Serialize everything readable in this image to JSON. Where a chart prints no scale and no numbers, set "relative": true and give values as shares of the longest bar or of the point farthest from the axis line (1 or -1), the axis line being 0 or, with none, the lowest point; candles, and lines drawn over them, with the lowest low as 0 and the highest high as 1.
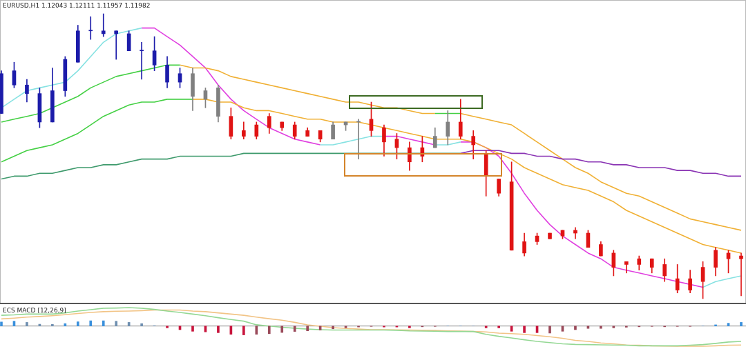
{
  "chart_data": [
    {
      "type": "candlestick",
      "title": "EURUSD,H1 1.12043 1.12111 1.11957 1.11982",
      "relative": true,
      "tick_labels": false,
      "categories": [
        null,
        null,
        null,
        null,
        null,
        null,
        null,
        null,
        null,
        null,
        null,
        null,
        null,
        null,
        null,
        null,
        null,
        null,
        null,
        null,
        null,
        null,
        null,
        null,
        null,
        null,
        null,
        null,
        null,
        null,
        null,
        null,
        null,
        null,
        null,
        null,
        null,
        null,
        null,
        null,
        null,
        null,
        null,
        null,
        null,
        null,
        null,
        null,
        null,
        null,
        null,
        null,
        null,
        null,
        null,
        null,
        null,
        null,
        null
      ],
      "ohlc": [
        [
          0.65,
          0.8,
          0.65,
          0.79
        ],
        [
          0.75,
          0.83,
          0.74,
          0.8
        ],
        [
          0.72,
          0.77,
          0.69,
          0.75
        ],
        [
          0.62,
          0.74,
          0.6,
          0.72
        ],
        [
          0.62,
          0.81,
          0.62,
          0.73
        ],
        [
          0.73,
          0.85,
          0.71,
          0.84
        ],
        [
          0.83,
          0.96,
          0.83,
          0.94
        ],
        [
          0.94,
          0.99,
          0.91,
          0.94
        ],
        [
          0.93,
          1,
          0.92,
          0.94
        ],
        [
          0.93,
          0.94,
          0.84,
          0.94
        ],
        [
          0.87,
          0.94,
          0.87,
          0.93
        ],
        [
          0.87,
          0.9,
          0.77,
          0.87
        ],
        [
          0.82,
          0.92,
          0.8,
          0.87
        ],
        [
          0.76,
          0.85,
          0.74,
          0.82
        ],
        [
          0.76,
          0.81,
          0.74,
          0.79
        ],
        [
          0.71,
          0.81,
          0.66,
          0.79
        ],
        [
          0.7,
          0.74,
          0.67,
          0.73
        ],
        [
          0.64,
          0.75,
          0.62,
          0.74
        ],
        [
          0.64,
          0.67,
          0.56,
          0.57
        ],
        [
          0.59,
          0.62,
          0.56,
          0.57
        ],
        [
          0.61,
          0.62,
          0.56,
          0.57
        ],
        [
          0.64,
          0.65,
          0.58,
          0.6
        ],
        [
          0.62,
          0.62,
          0.59,
          0.6
        ],
        [
          0.61,
          0.62,
          0.56,
          0.57
        ],
        [
          0.59,
          0.6,
          0.57,
          0.57
        ],
        [
          0.59,
          0.59,
          0.55,
          0.56
        ],
        [
          0.56,
          0.62,
          0.56,
          0.61
        ],
        [
          0.61,
          0.62,
          0.59,
          0.62
        ],
        [
          0.62,
          0.63,
          0.49,
          0.62
        ],
        [
          0.63,
          0.69,
          0.57,
          0.59
        ],
        [
          0.6,
          0.61,
          0.5,
          0.55
        ],
        [
          0.56,
          0.58,
          0.49,
          0.53
        ],
        [
          0.53,
          0.55,
          0.45,
          0.48
        ],
        [
          0.53,
          0.57,
          0.48,
          0.5
        ],
        [
          0.53,
          0.6,
          0.53,
          0.57
        ],
        [
          0.57,
          0.66,
          0.54,
          0.62
        ],
        [
          0.62,
          0.7,
          0.56,
          0.57
        ],
        [
          0.57,
          0.59,
          0.49,
          0.54
        ],
        [
          0.51,
          0.52,
          0.36,
          0.43
        ],
        [
          0.42,
          0.42,
          0.36,
          0.37
        ],
        [
          0.41,
          0.48,
          0.17,
          0.17
        ],
        [
          0.2,
          0.23,
          0.15,
          0.16
        ],
        [
          0.22,
          0.23,
          0.19,
          0.2
        ],
        [
          0.23,
          0.23,
          0.21,
          0.21
        ],
        [
          0.24,
          0.24,
          0.21,
          0.22
        ],
        [
          0.24,
          0.25,
          0.21,
          0.23
        ],
        [
          0.23,
          0.24,
          0.18,
          0.18
        ],
        [
          0.19,
          0.2,
          0.15,
          0.15
        ],
        [
          0.16,
          0.17,
          0.08,
          0.11
        ],
        [
          0.13,
          0.13,
          0.09,
          0.12
        ],
        [
          0.14,
          0.15,
          0.1,
          0.12
        ],
        [
          0.14,
          0.14,
          0.09,
          0.11
        ],
        [
          0.12,
          0.14,
          0.06,
          0.08
        ],
        [
          0.07,
          0.12,
          0.02,
          0.03
        ],
        [
          0.07,
          0.1,
          0.02,
          0.03
        ],
        [
          0.11,
          0.13,
          0,
          0.06
        ],
        [
          0.17,
          0.18,
          0.08,
          0.11
        ],
        [
          0.16,
          0.17,
          0.09,
          0.14
        ],
        [
          0.15,
          0.16,
          0.01,
          0.14
        ]
      ],
      "colors": [
        "#1c1caa",
        "#1c1caa",
        "#1c1caa",
        "#1c1caa",
        "#1c1caa",
        "#1c1caa",
        "#1c1caa",
        "#1c1caa",
        "#1c1caa",
        "#1c1caa",
        "#1c1caa",
        "#1c1caa",
        "#1c1caa",
        "#1c1caa",
        "#1c1caa",
        "#808080",
        "#808080",
        "#808080",
        "#e01414",
        "#e01414",
        "#e01414",
        "#e01414",
        "#e01414",
        "#e01414",
        "#e01414",
        "#e01414",
        "#808080",
        "#808080",
        "#808080",
        "#e01414",
        "#e01414",
        "#e01414",
        "#e01414",
        "#e01414",
        "#808080",
        "#808080",
        "#e01414",
        "#e01414",
        "#e01414",
        "#e01414",
        "#e01414",
        "#e01414",
        "#e01414",
        "#e01414",
        "#e01414",
        "#e01414",
        "#e01414",
        "#e01414",
        "#e01414",
        "#e01414",
        "#e01414",
        "#e01414",
        "#e01414",
        "#e01414",
        "#e01414",
        "#e01414",
        "#e01414",
        "#e01414",
        "#e01414"
      ],
      "series": [
        {
          "type": "line",
          "color": "#3e9a6c",
          "values": [
            0.42,
            0.43,
            0.43,
            0.44,
            0.44,
            0.45,
            0.46,
            0.46,
            0.47,
            0.47,
            0.48,
            0.49,
            0.49,
            0.49,
            0.5,
            0.5,
            0.5,
            0.5,
            0.5,
            0.51,
            0.51,
            0.51,
            0.51,
            0.51,
            0.51,
            0.51,
            0.51,
            0.51,
            0.51,
            0.51,
            0.51,
            0.51,
            0.51,
            0.51,
            0.51,
            0.51,
            0.51,
            null,
            null,
            null,
            null,
            null,
            null,
            null,
            null,
            null,
            null,
            null,
            null,
            null,
            null,
            null,
            null,
            null,
            null,
            null,
            null,
            null,
            null
          ]
        },
        {
          "type": "line",
          "color": "#8a34b4",
          "values": [
            null,
            null,
            null,
            null,
            null,
            null,
            null,
            null,
            null,
            null,
            null,
            null,
            null,
            null,
            null,
            null,
            null,
            null,
            null,
            null,
            null,
            null,
            null,
            null,
            null,
            null,
            null,
            null,
            null,
            null,
            null,
            null,
            null,
            null,
            null,
            null,
            0.51,
            0.52,
            0.52,
            0.52,
            0.51,
            0.51,
            0.5,
            0.5,
            0.49,
            0.49,
            0.48,
            0.48,
            0.47,
            0.47,
            0.46,
            0.46,
            0.46,
            0.45,
            0.45,
            0.44,
            0.44,
            0.43,
            0.43
          ]
        },
        {
          "type": "line",
          "color": "#44d044",
          "values": [
            0.48,
            0.5,
            0.52,
            0.53,
            0.54,
            0.56,
            0.58,
            0.61,
            0.64,
            0.66,
            0.68,
            0.69,
            0.69,
            0.7,
            0.7,
            0.7,
            null,
            null,
            null,
            null,
            null,
            null,
            null,
            null,
            null,
            null,
            null,
            null,
            null,
            null,
            null,
            null,
            null,
            null,
            null,
            null,
            null,
            null,
            null,
            null,
            null,
            null,
            null,
            null,
            null,
            null,
            null,
            null,
            null,
            null,
            null,
            null,
            null,
            null,
            null,
            null,
            null,
            null,
            null
          ]
        },
        {
          "type": "line",
          "color": "#f0b034",
          "values": [
            null,
            null,
            null,
            null,
            null,
            null,
            null,
            null,
            null,
            null,
            null,
            null,
            null,
            null,
            null,
            0.7,
            0.7,
            0.69,
            0.69,
            0.67,
            0.66,
            0.66,
            0.65,
            0.64,
            0.63,
            0.63,
            0.62,
            0.62,
            0.62,
            0.61,
            0.6,
            0.59,
            0.58,
            0.57,
            0.56,
            0.56,
            0.56,
            0.55,
            0.53,
            0.51,
            0.49,
            0.46,
            0.44,
            0.42,
            0.4,
            0.39,
            0.38,
            0.36,
            0.34,
            0.31,
            0.29,
            0.27,
            0.25,
            0.23,
            0.21,
            0.19,
            0.18,
            0.17,
            0.16
          ]
        },
        {
          "type": "line",
          "color": "#44d044",
          "values": [
            0.62,
            0.63,
            0.64,
            0.65,
            0.67,
            0.69,
            0.71,
            0.74,
            0.76,
            0.78,
            0.79,
            0.8,
            0.81,
            0.82,
            0.82,
            null,
            null,
            null,
            null,
            null,
            null,
            null,
            null,
            null,
            null,
            null,
            null,
            null,
            null,
            null,
            null,
            null,
            null,
            null,
            0.65,
            0.65,
            0.65,
            null,
            null,
            null,
            null,
            null,
            null,
            null,
            null,
            null,
            null,
            null,
            null,
            null,
            null,
            null,
            null,
            null,
            null,
            null,
            null,
            null,
            null
          ]
        },
        {
          "type": "line",
          "color": "#f0b034",
          "values": [
            null,
            null,
            null,
            null,
            null,
            null,
            null,
            null,
            null,
            null,
            null,
            null,
            null,
            null,
            0.82,
            0.81,
            0.81,
            0.8,
            0.78,
            0.77,
            0.76,
            0.75,
            0.74,
            0.73,
            0.72,
            0.71,
            0.7,
            0.69,
            0.69,
            0.68,
            0.67,
            0.67,
            0.66,
            0.65,
            0.65,
            null,
            0.65,
            0.64,
            0.63,
            0.62,
            0.61,
            0.58,
            0.55,
            0.52,
            0.49,
            0.46,
            0.44,
            0.41,
            0.39,
            0.37,
            0.36,
            0.34,
            0.32,
            0.3,
            0.28,
            0.27,
            0.26,
            0.25,
            0.24
          ]
        },
        {
          "type": "line",
          "color": "#86e2e2",
          "values": [
            0.67,
            0.7,
            0.73,
            0.74,
            0.75,
            0.76,
            0.8,
            0.85,
            0.9,
            0.93,
            0.94,
            0.95,
            null,
            null,
            null,
            null,
            null,
            null,
            null,
            null,
            null,
            null,
            null,
            null,
            null,
            0.54,
            0.54,
            0.55,
            0.56,
            0.57,
            0.57,
            null,
            null,
            null,
            0.54,
            0.54,
            0.55,
            null,
            null,
            null,
            null,
            null,
            null,
            null,
            null,
            null,
            null,
            null,
            null,
            null,
            null,
            null,
            null,
            null,
            null,
            0.04,
            0.06,
            0.07,
            0.08
          ]
        },
        {
          "type": "line",
          "color": "#e040e0",
          "values": [
            null,
            null,
            null,
            null,
            null,
            null,
            null,
            null,
            null,
            null,
            null,
            0.95,
            0.95,
            0.92,
            0.89,
            0.85,
            0.81,
            0.75,
            0.7,
            0.66,
            0.63,
            0.6,
            0.58,
            0.56,
            0.55,
            0.54,
            null,
            null,
            null,
            null,
            0.57,
            0.57,
            0.56,
            0.55,
            0.54,
            null,
            0.55,
            0.55,
            0.53,
            0.5,
            0.44,
            0.37,
            0.31,
            0.26,
            0.22,
            0.19,
            0.16,
            0.14,
            0.11,
            0.1,
            0.09,
            0.08,
            0.07,
            0.06,
            0.05,
            0.04,
            null,
            null,
            null
          ]
        }
      ]
    },
    {
      "type": "bar",
      "title": "ECS MACD [12,26,9]",
      "relative": true,
      "tick_labels": false,
      "categories": [
        null,
        null,
        null,
        null,
        null,
        null,
        null,
        null,
        null,
        null,
        null,
        null,
        null,
        null,
        null,
        null,
        null,
        null,
        null,
        null,
        null,
        null,
        null,
        null,
        null,
        null,
        null,
        null,
        null,
        null,
        null,
        null,
        null,
        null,
        null,
        null,
        null,
        null,
        null,
        null,
        null,
        null,
        null,
        null,
        null,
        null,
        null,
        null,
        null,
        null,
        null,
        null,
        null,
        null,
        null,
        null,
        null,
        null,
        null
      ],
      "values": [
        0.2,
        0.24,
        0.18,
        0.09,
        0.08,
        0.12,
        0.21,
        0.26,
        0.26,
        0.24,
        0.18,
        0.12,
        0.02,
        -0.09,
        -0.18,
        -0.26,
        -0.29,
        -0.33,
        -0.41,
        -0.44,
        -0.41,
        -0.38,
        -0.32,
        -0.27,
        -0.24,
        -0.2,
        -0.14,
        -0.09,
        -0.05,
        -0.02,
        -0.05,
        -0.05,
        -0.09,
        -0.04,
        -0.02,
        0.01,
        0.01,
        0,
        -0.09,
        -0.09,
        -0.26,
        -0.33,
        -0.33,
        -0.35,
        -0.26,
        -0.18,
        -0.12,
        -0.12,
        -0.09,
        -0.06,
        -0.04,
        -0.02,
        -0.04,
        -0.02,
        -0.02,
        0.01,
        0.06,
        0.14,
        0.18
      ],
      "colors": [
        "#3a90dc",
        "#3a90dc",
        "#6f8fb0",
        "#6f8fb0",
        "#6f8fb0",
        "#3a90dc",
        "#3a90dc",
        "#3a90dc",
        "#3a90dc",
        "#6f8fb0",
        "#6f8fb0",
        "#6f8fb0",
        "#6f8fb0",
        "#c8143c",
        "#c8143c",
        "#c8143c",
        "#c8143c",
        "#c8143c",
        "#c8143c",
        "#c8143c",
        "#9a4a5a",
        "#9a4a5a",
        "#9a4a5a",
        "#9a4a5a",
        "#9a4a5a",
        "#9a4a5a",
        "#9a4a5a",
        "#9a4a5a",
        "#9a4a5a",
        "#9a4a5a",
        "#c8143c",
        "#c8143c",
        "#c8143c",
        "#9a4a5a",
        "#9a4a5a",
        "#6f8fb0",
        "#6f8fb0",
        "#6f8fb0",
        "#c8143c",
        "#c8143c",
        "#c8143c",
        "#c8143c",
        "#c8143c",
        "#9a4a5a",
        "#9a4a5a",
        "#9a4a5a",
        "#9a4a5a",
        "#9a4a5a",
        "#9a4a5a",
        "#9a4a5a",
        "#9a4a5a",
        "#9a4a5a",
        "#9a4a5a",
        "#9a4a5a",
        "#9a4a5a",
        "#6f8fb0",
        "#3a90dc",
        "#3a90dc",
        "#3a90dc"
      ],
      "series": [
        {
          "type": "line",
          "color": "#94d894",
          "values": [
            0.53,
            0.55,
            0.59,
            0.59,
            0.59,
            0.65,
            0.74,
            0.81,
            0.88,
            0.89,
            0.91,
            0.88,
            0.82,
            0.74,
            0.67,
            0.59,
            0.51,
            0.41,
            0.32,
            0.24,
            0.06,
            0,
            -0.06,
            -0.11,
            -0.15,
            -0.18,
            -0.2,
            -0.2,
            -0.2,
            -0.2,
            -0.2,
            -0.21,
            -0.24,
            -0.25,
            -0.26,
            -0.27,
            -0.27,
            -0.27,
            -0.41,
            -0.51,
            -0.59,
            -0.68,
            -0.76,
            -0.82,
            -0.88,
            -0.91,
            -0.92,
            -0.93,
            -0.94,
            -0.95,
            -0.98,
            -0.98,
            -0.98,
            -0.98,
            -0.95,
            -0.92,
            -0.86,
            -0.79,
            -0.76
          ]
        },
        {
          "type": "line",
          "color": "#f2c486",
          "values": [
            0.35,
            0.39,
            0.44,
            0.47,
            0.51,
            0.56,
            0.62,
            0.67,
            0.71,
            0.73,
            0.74,
            0.76,
            0.79,
            0.79,
            0.79,
            0.74,
            0.71,
            0.65,
            0.59,
            0.53,
            0.44,
            0.36,
            0.29,
            0.18,
            0.06,
            -0.01,
            -0.08,
            -0.12,
            -0.15,
            -0.18,
            -0.18,
            -0.19,
            -0.2,
            -0.21,
            -0.22,
            -0.24,
            -0.25,
            -0.27,
            -0.29,
            -0.35,
            -0.38,
            -0.41,
            -0.47,
            -0.53,
            -0.61,
            -0.71,
            -0.76,
            -0.84,
            -0.88,
            -0.94,
            -0.95,
            -0.98,
            -0.99,
            -1,
            -1,
            -1,
            -0.98,
            -0.95,
            -0.94
          ]
        }
      ]
    }
  ]
}
